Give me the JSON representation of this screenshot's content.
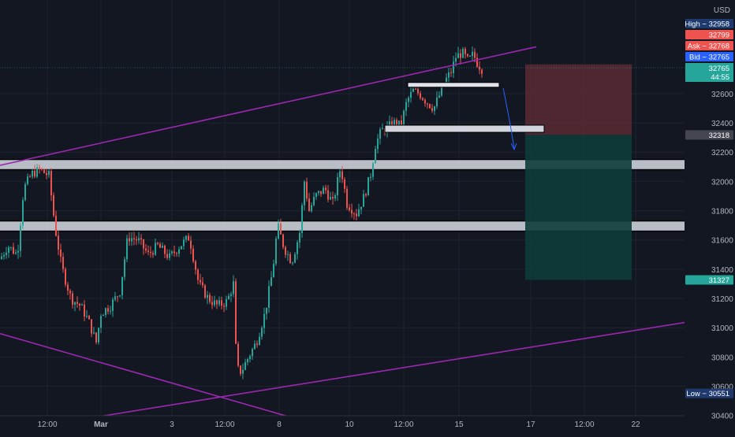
{
  "chart_data": {
    "type": "candlestick",
    "currency": "USD",
    "ylim": [
      30280,
      33240
    ],
    "y_ticks": [
      30400,
      30600,
      30800,
      31000,
      31200,
      31400,
      31600,
      31800,
      32000,
      32200,
      32400,
      32600
    ],
    "x_tick_labels": [
      "12:00",
      "Mar",
      "3",
      "12:00",
      "8",
      "10",
      "12:00",
      "15",
      "17",
      "12:00",
      "22"
    ],
    "price_labels": {
      "high": {
        "label": "High",
        "value": 32958
      },
      "pre": {
        "value": 32799
      },
      "ask": {
        "label": "Ask",
        "value": 32768
      },
      "bid": {
        "label": "Bid",
        "value": 32765
      },
      "last": {
        "value": 32765,
        "countdown": "44:55"
      },
      "target": {
        "value": 32318
      },
      "stop_target": {
        "value": 31327
      },
      "low": {
        "label": "Low",
        "value": 30551
      }
    },
    "zones": [
      {
        "from": 32080,
        "to": 32150
      },
      {
        "from": 31660,
        "to": 31730
      }
    ],
    "levels": [
      {
        "price": 32660
      },
      {
        "price": 32360
      }
    ],
    "position": {
      "entry": 32318,
      "stop": 32800,
      "target": 31327
    },
    "colors": {
      "up": "#26a69a",
      "down": "#ef5350",
      "trendline": "#9c27b0",
      "zone": "#d1d4dc",
      "stop_fill": "#5b2a33",
      "target_fill": "#0e3b3a",
      "arrow": "#2962ff"
    }
  }
}
